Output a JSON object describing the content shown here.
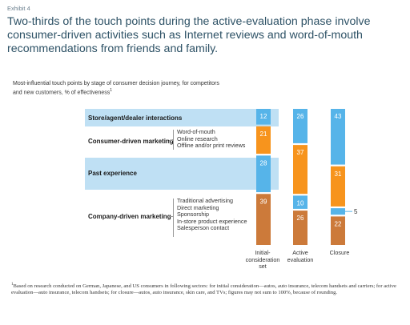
{
  "exhibit_label": "Exhibit 4",
  "headline": "Two-thirds of the touch points during the active-evaluation phase involve consumer-driven activities such as Internet reviews and word-of-mouth recommendations from friends and family.",
  "subtitle_line1": "Most-influential touch points by stage of consumer decision journey, for competitors",
  "subtitle_line2": "and new customers, % of effectiveness",
  "subtitle_footnote_mark": "1",
  "rows": [
    {
      "label": "Store/agent/dealer interactions",
      "color": "#56b4e9",
      "items": []
    },
    {
      "label": "Consumer-driven marketing",
      "color": "#f7941d",
      "items": [
        "Word-of-mouth",
        "Online research",
        "Offline and/or print reviews"
      ]
    },
    {
      "label": "Past experience",
      "color": "#56b4e9",
      "items": []
    },
    {
      "label": "Company-driven marketing",
      "color": "#cc7a3a",
      "items": [
        "Traditional advertising",
        "Direct marketing",
        "Sponsorship",
        "In-store product experience",
        "Salesperson contact"
      ]
    }
  ],
  "chart_data": {
    "type": "bar",
    "stacked": true,
    "categories": [
      "Initial-consideration set",
      "Active evaluation",
      "Closure"
    ],
    "category_labels": [
      [
        "Initial-",
        "consideration",
        "set"
      ],
      [
        "Active",
        "evaluation"
      ],
      [
        "Closure"
      ]
    ],
    "series": [
      {
        "name": "Store/agent/dealer interactions",
        "values": [
          12,
          26,
          43
        ]
      },
      {
        "name": "Consumer-driven marketing",
        "values": [
          21,
          37,
          31
        ]
      },
      {
        "name": "Past experience",
        "values": [
          28,
          10,
          5
        ]
      },
      {
        "name": "Company-driven marketing",
        "values": [
          39,
          26,
          22
        ]
      }
    ],
    "colors": [
      "#56b4e9",
      "#f7941d",
      "#56b4e9",
      "#cc7a3a"
    ],
    "value_labels": [
      [
        "12",
        "21",
        "28",
        "39"
      ],
      [
        "26",
        "37",
        "10",
        "26"
      ],
      [
        "43",
        "31",
        "5",
        "22"
      ]
    ],
    "ylim": [
      0,
      100
    ]
  },
  "footnote_mark": "1",
  "footnote_text": "Based on research conducted on German, Japanese, and US consumers in following sectors: for initial consideration—autos, auto insurance, telecom handsets and carriers; for active evaluation—auto insurance, telecom handsets; for closure—autos, auto insurance, skin care, and TVs; figures may not sum to 100%, because of rounding."
}
